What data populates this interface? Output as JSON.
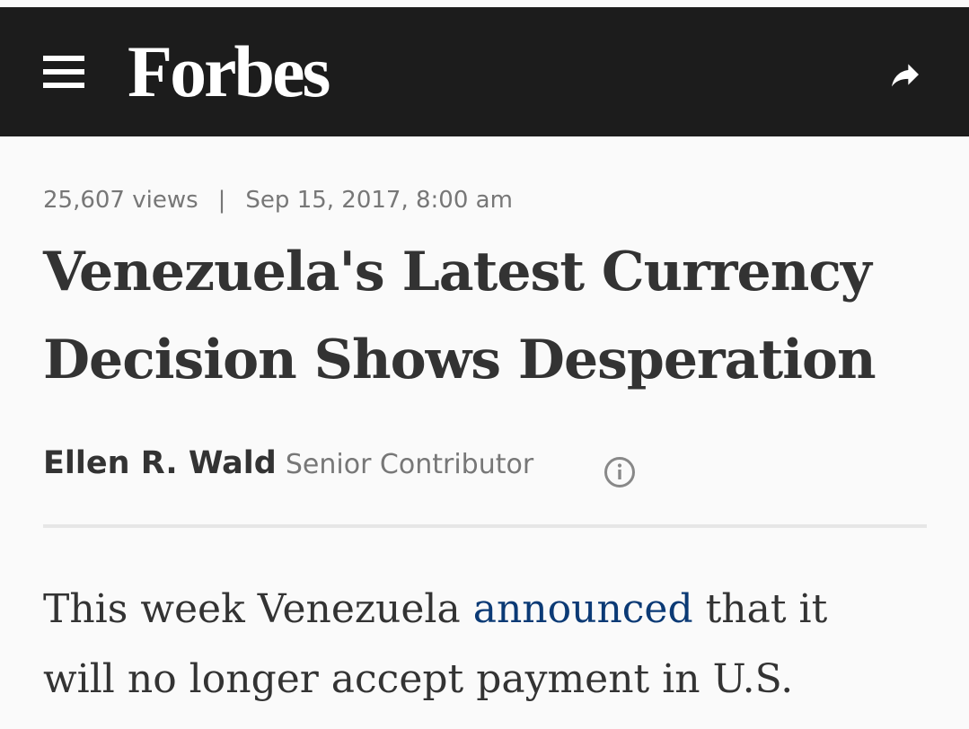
{
  "header": {
    "logo": "Forbes"
  },
  "meta": {
    "views": "25,607 views",
    "separator": "|",
    "date": "Sep 15, 2017, 8:00 am"
  },
  "article": {
    "title": "Venezuela's Latest Currency Decision Shows Desperation",
    "author": "Ellen R. Wald",
    "role": "Senior Contributor",
    "body": {
      "before": "This week Venezuela ",
      "link": "announced",
      "after": " that it will no longer accept payment in U.S."
    }
  }
}
